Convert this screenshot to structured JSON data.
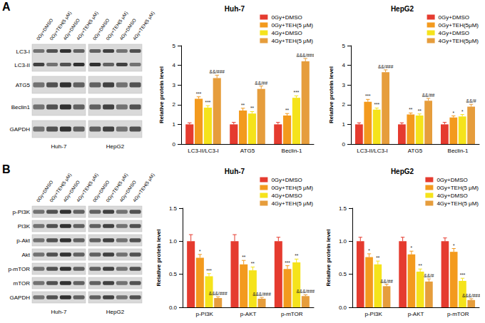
{
  "panels": [
    {
      "letter": "A",
      "lanes": [
        "0Gy+DMSO",
        "0Gy+TEH(5 μM)",
        "4Gy+DMSO",
        "4Gy+TEH(5 μM)"
      ],
      "cell_lines": [
        "Huh-7",
        "HepG2"
      ],
      "rows": [
        [
          "LC3-I",
          "LC3-II"
        ],
        [
          "ATG5"
        ],
        [
          "Beclin1"
        ],
        [
          "GAPDH"
        ]
      ]
    },
    {
      "letter": "B",
      "lanes": [
        "0Gy+DMSO",
        "0Gy+TEH(5 μM)",
        "4Gy+DMSO",
        "4Gy+TEH(5 μM)"
      ],
      "cell_lines": [
        "Huh-7",
        "HepG2"
      ],
      "rows": [
        [
          "p-PI3K"
        ],
        [
          "PI3K"
        ],
        [
          "p-Akt"
        ],
        [
          "Akt"
        ],
        [
          "p-mTOR"
        ],
        [
          "mTOR"
        ],
        [
          "GAPDH"
        ]
      ]
    }
  ],
  "chart_data": [
    {
      "type": "bar",
      "title": "Huh-7",
      "ylabel": "Relative protein level",
      "categories": [
        "LC3-II/LC3-I",
        "ATG5",
        "Beclin-1"
      ],
      "ylim": [
        0,
        5
      ],
      "yticks": [
        0,
        1,
        2,
        3,
        4,
        5
      ],
      "grid": false,
      "legend": "top-right",
      "series": [
        {
          "name": "0Gy+DMSO",
          "color": "#e53b2f",
          "values": [
            1.0,
            1.0,
            1.0
          ],
          "errors": [
            0.08,
            0.1,
            0.1
          ],
          "annotations": [
            null,
            null,
            null
          ]
        },
        {
          "name": "0Gy+TEH(5 μM)",
          "color": "#f39a1e",
          "values": [
            2.3,
            1.7,
            1.45
          ],
          "errors": [
            0.1,
            0.12,
            0.1
          ],
          "annotations": [
            "***",
            "**",
            "**"
          ]
        },
        {
          "name": "4Gy+DMSO",
          "color": "#f5e31b",
          "values": [
            1.85,
            1.55,
            2.35
          ],
          "errors": [
            0.1,
            0.1,
            0.1
          ],
          "annotations": [
            "***",
            "**",
            "***"
          ]
        },
        {
          "name": "4Gy+TEH(5 μM)",
          "color": "#e69d3c",
          "values": [
            3.35,
            2.8,
            4.2
          ],
          "errors": [
            0.15,
            0.15,
            0.15
          ],
          "annotations": [
            "&&/###",
            "&&/##",
            "&&&/###"
          ]
        }
      ]
    },
    {
      "type": "bar",
      "title": "HepG2",
      "ylabel": "Relative protein level",
      "categories": [
        "LC3-II/LC3-I",
        "ATG5",
        "Beclin-1"
      ],
      "ylim": [
        0,
        5
      ],
      "yticks": [
        0,
        1,
        2,
        3,
        4,
        5
      ],
      "grid": false,
      "legend": "top-right",
      "series": [
        {
          "name": "0Gy+DMSO",
          "color": "#e53b2f",
          "values": [
            1.0,
            1.0,
            1.0
          ],
          "errors": [
            0.08,
            0.08,
            0.1
          ],
          "annotations": [
            null,
            null,
            null
          ]
        },
        {
          "name": "0Gy+TEH(5μM)",
          "color": "#f39a1e",
          "values": [
            2.15,
            1.5,
            1.35
          ],
          "errors": [
            0.12,
            0.08,
            0.08
          ],
          "annotations": [
            "***",
            "**",
            "*"
          ]
        },
        {
          "name": "4Gy+DMSO",
          "color": "#f5e31b",
          "values": [
            1.75,
            1.45,
            1.4
          ],
          "errors": [
            0.08,
            0.08,
            0.1
          ],
          "annotations": [
            "***",
            "**",
            "*"
          ]
        },
        {
          "name": "4Gy+TEH(5μM)",
          "color": "#e69d3c",
          "values": [
            3.65,
            2.2,
            1.9
          ],
          "errors": [
            0.12,
            0.12,
            0.12
          ],
          "annotations": [
            "&&/###",
            "&&/##",
            "&&/#"
          ]
        }
      ]
    },
    {
      "type": "bar",
      "title": "Huh-7",
      "ylabel": "Relative protein level",
      "categories": [
        "p-PI3K",
        "p-AKT",
        "p-mTOR"
      ],
      "ylim": [
        0,
        1.5
      ],
      "yticks": [
        {
          "value": 0,
          "label": "0.0"
        },
        {
          "value": 0.5,
          "label": "0.5"
        },
        {
          "value": 1,
          "label": "1.0"
        },
        {
          "value": 1.5,
          "label": "1.5"
        }
      ],
      "grid": false,
      "legend": "top-right",
      "series": [
        {
          "name": "0Gy+DMSO",
          "color": "#e53b2f",
          "values": [
            1.0,
            1.0,
            1.0
          ],
          "errors": [
            0.1,
            0.1,
            0.06
          ],
          "annotations": [
            null,
            null,
            null
          ]
        },
        {
          "name": "0Gy+TEH(5 μM)",
          "color": "#f39a1e",
          "values": [
            0.75,
            0.65,
            0.58
          ],
          "errors": [
            0.05,
            0.06,
            0.05
          ],
          "annotations": [
            "*",
            "**",
            "***"
          ]
        },
        {
          "name": "4Gy+DMSO",
          "color": "#f5e31b",
          "values": [
            0.47,
            0.56,
            0.68
          ],
          "errors": [
            0.04,
            0.05,
            0.05
          ],
          "annotations": [
            "***",
            "**",
            "**"
          ]
        },
        {
          "name": "4Gy+TEH(5 μM)",
          "color": "#e69d3c",
          "values": [
            0.14,
            0.13,
            0.17
          ],
          "errors": [
            0.02,
            0.02,
            0.02
          ],
          "annotations": [
            "&&&/###",
            "&&&/###",
            "&&&/###"
          ]
        }
      ]
    },
    {
      "type": "bar",
      "title": "HepG2",
      "ylabel": "Relative protein level",
      "categories": [
        "p-PI3K",
        "p-AKT",
        "p-mTOR"
      ],
      "ylim": [
        0,
        1.5
      ],
      "yticks": [
        {
          "value": 0,
          "label": "0.0"
        },
        {
          "value": 0.5,
          "label": "0.5"
        },
        {
          "value": 1,
          "label": "1.0"
        },
        {
          "value": 1.5,
          "label": "1.5"
        }
      ],
      "grid": false,
      "legend": "top-right",
      "series": [
        {
          "name": "0Gy+DMSO",
          "color": "#e53b2f",
          "values": [
            1.0,
            1.0,
            1.0
          ],
          "errors": [
            0.06,
            0.06,
            0.05
          ],
          "annotations": [
            null,
            null,
            null
          ]
        },
        {
          "name": "0Gy+TEH(5 μM)",
          "color": "#f39a1e",
          "values": [
            0.76,
            0.8,
            0.84
          ],
          "errors": [
            0.05,
            0.05,
            0.05
          ],
          "annotations": [
            "*",
            "*",
            "*"
          ]
        },
        {
          "name": "4Gy+DMSO",
          "color": "#f5e31b",
          "values": [
            0.65,
            0.54,
            0.4
          ],
          "errors": [
            0.05,
            0.04,
            0.04
          ],
          "annotations": [
            "**",
            "**",
            "***"
          ]
        },
        {
          "name": "4Gy+TEH(5 μM)",
          "color": "#e69d3c",
          "values": [
            0.32,
            0.39,
            0.11
          ],
          "errors": [
            0.03,
            0.04,
            0.02
          ],
          "annotations": [
            "&&/##",
            "&&/#",
            "&&&/###"
          ]
        }
      ]
    }
  ]
}
